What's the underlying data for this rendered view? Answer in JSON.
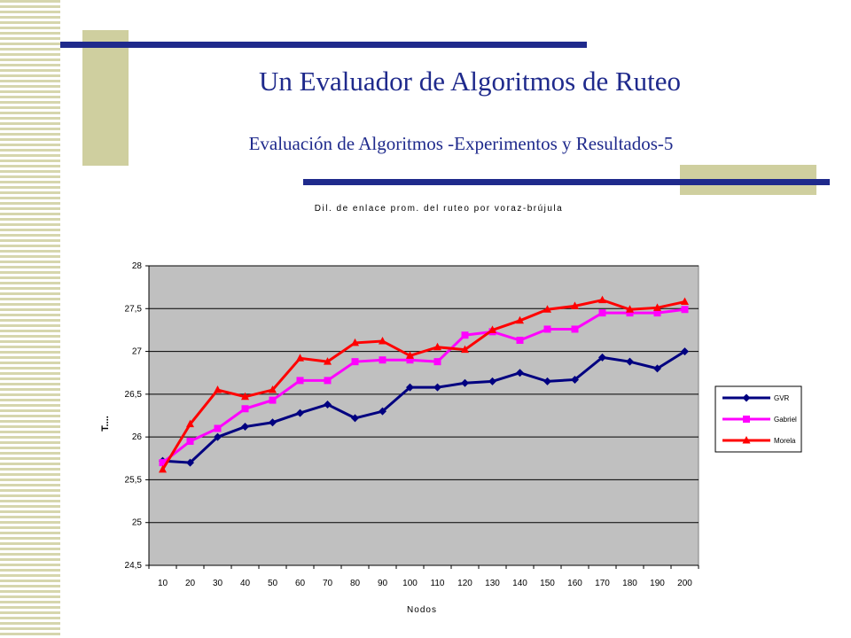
{
  "slide": {
    "title": "Un Evaluador de Algoritmos de Ruteo",
    "subtitle": "Evaluación de Algoritmos -Experimentos y Resultados-5"
  },
  "colors": {
    "accent_bar": "#1f2a8c",
    "deco_block": "#cfcf9f",
    "title_text": "#1f2a8c",
    "plot_background": "#c0c0c0"
  },
  "chart_data": {
    "type": "line",
    "title": "Dil. de enlace prom. del ruteo por voraz-brújula",
    "xlabel": "Nodos",
    "ylabel": "T....",
    "categories": [
      "10",
      "20",
      "30",
      "40",
      "50",
      "60",
      "70",
      "80",
      "90",
      "100",
      "110",
      "120",
      "130",
      "140",
      "150",
      "160",
      "170",
      "180",
      "190",
      "200"
    ],
    "ylim": [
      24.5,
      28
    ],
    "yticks": [
      "24,5",
      "25",
      "25,5",
      "26",
      "26,5",
      "27",
      "27,5",
      "28"
    ],
    "grid": true,
    "legend_position": "right",
    "series": [
      {
        "name": "GVR",
        "color": "#000080",
        "marker": "diamond",
        "values": [
          25.72,
          25.7,
          26.0,
          26.12,
          26.17,
          26.28,
          26.38,
          26.22,
          26.3,
          26.58,
          26.58,
          26.63,
          26.65,
          26.75,
          26.65,
          26.67,
          26.93,
          26.88,
          26.8,
          27.0
        ]
      },
      {
        "name": "Gabriel",
        "color": "#ff00ff",
        "marker": "square",
        "values": [
          25.7,
          25.95,
          26.1,
          26.33,
          26.43,
          26.66,
          26.66,
          26.88,
          26.9,
          26.9,
          26.88,
          27.19,
          27.23,
          27.13,
          27.26,
          27.26,
          27.45,
          27.45,
          27.45,
          27.49
        ]
      },
      {
        "name": "Morela",
        "color": "#ff0000",
        "marker": "triangle",
        "values": [
          25.62,
          26.15,
          26.55,
          26.47,
          26.55,
          26.92,
          26.88,
          27.1,
          27.12,
          26.95,
          27.05,
          27.02,
          27.25,
          27.36,
          27.49,
          27.53,
          27.6,
          27.49,
          27.51,
          27.58
        ]
      }
    ]
  }
}
